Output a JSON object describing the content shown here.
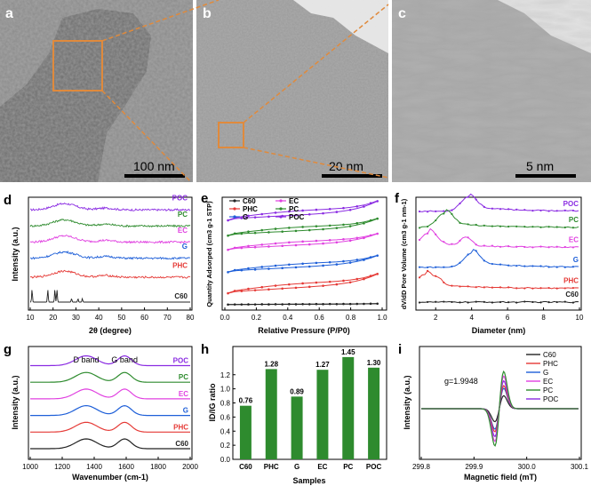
{
  "figure": {
    "tem": {
      "a": {
        "letter": "a",
        "scale_text": "100 nm"
      },
      "b": {
        "letter": "b",
        "scale_text": "20 nm"
      },
      "c": {
        "letter": "c",
        "scale_text": "5 nm"
      }
    }
  },
  "colors": {
    "C60": "#222222",
    "PHC": "#e53935",
    "G": "#1e5fd8",
    "EC": "#e040e0",
    "PC": "#2e8b2e",
    "POC": "#8a2be2",
    "bar": "#2e8b2e",
    "zoom": "#e08a3c"
  },
  "chart_data": [
    {
      "panel": "d",
      "type": "line",
      "xlabel": "2θ (degree)",
      "ylabel": "Intensity (a.u.)",
      "xlim": [
        10,
        80
      ],
      "xticks": [
        10,
        20,
        30,
        40,
        50,
        60,
        70,
        80
      ],
      "series": [
        {
          "name": "POC",
          "offset": 6.2
        },
        {
          "name": "PC",
          "offset": 5.1
        },
        {
          "name": "EC",
          "offset": 4.0
        },
        {
          "name": "G",
          "offset": 2.9
        },
        {
          "name": "PHC",
          "offset": 1.6
        },
        {
          "name": "C60",
          "offset": 0.0,
          "peaks": [
            10.8,
            17.7,
            20.8,
            21.7,
            28.1,
            30.9,
            32.8
          ]
        }
      ]
    },
    {
      "panel": "e",
      "type": "line",
      "xlabel": "Relative Pressure (P/P0)",
      "ylabel": "Quantity Adsorped (cm3 g-1 STP)",
      "xlim": [
        0.0,
        1.0
      ],
      "xticks": [
        0.0,
        0.2,
        0.4,
        0.6,
        0.8,
        1.0
      ],
      "legend": [
        "C60",
        "EC",
        "PHC",
        "PC",
        "G",
        "POC"
      ],
      "series": [
        {
          "name": "POC",
          "start": 9.0,
          "end": 10.6,
          "uptake": 1.3
        },
        {
          "name": "PC",
          "start": 7.4,
          "end": 8.9,
          "uptake": 1.1
        },
        {
          "name": "EC",
          "start": 5.9,
          "end": 7.4,
          "uptake": 1.0
        },
        {
          "name": "G",
          "start": 3.5,
          "end": 5.1,
          "uptake": 1.0
        },
        {
          "name": "PHC",
          "start": 1.2,
          "end": 3.0,
          "uptake": 1.2
        },
        {
          "name": "C60",
          "start": 0.2,
          "end": 0.3,
          "uptake": 0.05
        }
      ]
    },
    {
      "panel": "f",
      "type": "line",
      "xlabel": "Diameter (nm)",
      "ylabel": "dV/dD Pore Volume (cm3 g-1 nm-1)",
      "xlim": [
        1,
        10
      ],
      "xticks": [
        2,
        4,
        6,
        8,
        10
      ],
      "series": [
        {
          "name": "POC",
          "offset": 7.3,
          "peak_nm": 3.8
        },
        {
          "name": "PC",
          "offset": 6.0,
          "peak_nm": 2.5
        },
        {
          "name": "EC",
          "offset": 4.4,
          "peak_nm": 1.6
        },
        {
          "name": "G",
          "offset": 2.8,
          "peak_nm": 4.0
        },
        {
          "name": "PHC",
          "offset": 1.1,
          "peak_nm": 1.4
        },
        {
          "name": "C60",
          "offset": 0.0,
          "peak_nm": 0
        }
      ]
    },
    {
      "panel": "g",
      "type": "line",
      "xlabel": "Wavenumber (cm-1)",
      "ylabel": "Intensity (a.u.)",
      "xlim": [
        1000,
        2000
      ],
      "xticks": [
        1000,
        1200,
        1400,
        1600,
        1800,
        2000
      ],
      "annotations": [
        "D band",
        "G band"
      ],
      "band_positions_cm": [
        1350,
        1590
      ],
      "series": [
        {
          "name": "POC",
          "offset": 5.5
        },
        {
          "name": "PC",
          "offset": 4.4
        },
        {
          "name": "EC",
          "offset": 3.3
        },
        {
          "name": "G",
          "offset": 2.2
        },
        {
          "name": "PHC",
          "offset": 1.1
        },
        {
          "name": "C60",
          "offset": 0.0
        }
      ]
    },
    {
      "panel": "h",
      "type": "bar",
      "xlabel": "Samples",
      "ylabel": "ID/IG ratio",
      "ylim": [
        0.0,
        1.6
      ],
      "yticks": [
        0.0,
        0.2,
        0.4,
        0.6,
        0.8,
        1.0,
        1.2
      ],
      "categories": [
        "C60",
        "PHC",
        "G",
        "EC",
        "PC",
        "POC"
      ],
      "values": [
        0.76,
        1.28,
        0.89,
        1.27,
        1.45,
        1.3
      ],
      "labels": [
        "0.76",
        "1.28",
        "0.89",
        "1.27",
        "1.45",
        "1.30"
      ]
    },
    {
      "panel": "i",
      "type": "line",
      "xlabel": "Magnetic field (mT)",
      "ylabel": "Intensity (a.u.)",
      "xlim": [
        299.8,
        300.1
      ],
      "xticks": [
        299.8,
        299.9,
        300.0,
        300.1
      ],
      "annotation": "g=1.9948",
      "center_mT": 299.948,
      "legend": [
        "C60",
        "PHC",
        "G",
        "EC",
        "PC",
        "POC"
      ],
      "series": [
        {
          "name": "C60",
          "amplitude": 0.35
        },
        {
          "name": "G",
          "amplitude": 0.55
        },
        {
          "name": "PHC",
          "amplitude": 0.62
        },
        {
          "name": "POC",
          "amplitude": 0.75
        },
        {
          "name": "EC",
          "amplitude": 0.88
        },
        {
          "name": "PC",
          "amplitude": 1.0
        }
      ]
    }
  ],
  "texts": {
    "d": {
      "letter": "d",
      "tick_labels": [
        "10",
        "20",
        "30",
        "40",
        "50",
        "60",
        "70",
        "80"
      ]
    },
    "e": {
      "letter": "e",
      "tick_labels": [
        "0.0",
        "0.2",
        "0.4",
        "0.6",
        "0.8",
        "1.0"
      ]
    },
    "f": {
      "letter": "f",
      "tick_labels": [
        "2",
        "4",
        "6",
        "8",
        "10"
      ]
    },
    "g": {
      "letter": "g",
      "tick_labels": [
        "1000",
        "1200",
        "1400",
        "1600",
        "1800",
        "2000"
      ]
    },
    "h": {
      "letter": "h",
      "tick_labels": [
        "0.0",
        "0.2",
        "0.4",
        "0.6",
        "0.8",
        "1.0",
        "1.2"
      ]
    },
    "i": {
      "letter": "i",
      "tick_labels": [
        "299.8",
        "299.9",
        "300.0",
        "300.1"
      ]
    }
  }
}
